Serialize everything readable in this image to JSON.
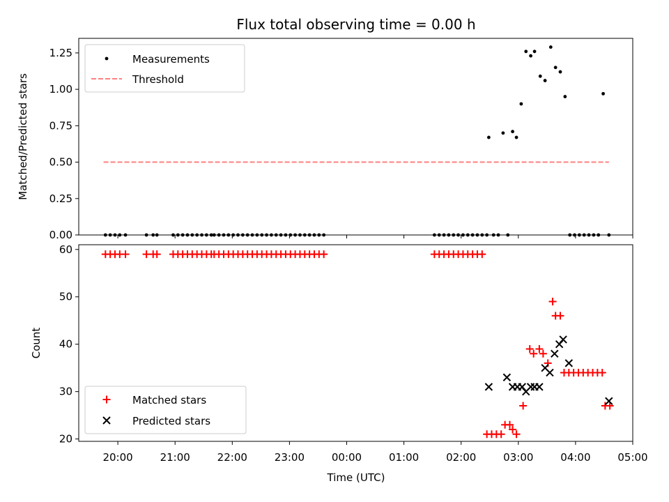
{
  "chart_data": [
    {
      "type": "scatter",
      "title": "Flux total observing time = 0.00 h",
      "ylabel": "Matched/Predicted stars",
      "ylim": [
        0,
        1.35
      ],
      "yticks": [
        "0.00",
        "0.25",
        "0.50",
        "0.75",
        "1.00",
        "1.25"
      ],
      "legend_position": "top-left",
      "colors": {
        "measurements": "#000000",
        "threshold": "#ff7f7f"
      },
      "series": [
        {
          "name": "Measurements",
          "x": [
            "19:47",
            "19:52",
            "19:57",
            "20:02",
            "20:08",
            "20:30",
            "20:37",
            "20:41",
            "20:58",
            "21:03",
            "21:08",
            "21:13",
            "21:18",
            "21:23",
            "21:28",
            "21:33",
            "21:38",
            "21:41",
            "21:46",
            "21:51",
            "21:56",
            "22:01",
            "22:06",
            "22:11",
            "22:16",
            "22:21",
            "22:26",
            "22:31",
            "22:36",
            "22:41",
            "22:46",
            "22:51",
            "22:56",
            "23:01",
            "23:06",
            "23:11",
            "23:16",
            "23:21",
            "23:26",
            "23:31",
            "23:36",
            "01:32",
            "01:37",
            "01:42",
            "01:47",
            "01:52",
            "01:57",
            "02:02",
            "02:07",
            "02:12",
            "02:17",
            "02:22",
            "02:27",
            "02:29",
            "02:34",
            "02:39",
            "02:44",
            "02:49",
            "02:54",
            "02:58",
            "03:03",
            "03:08",
            "03:13",
            "03:17",
            "03:23",
            "03:28",
            "03:34",
            "03:39",
            "03:44",
            "03:49",
            "03:54",
            "03:59",
            "04:04",
            "04:09",
            "04:14",
            "04:19",
            "04:24",
            "04:29",
            "04:35"
          ],
          "y": [
            0,
            0,
            0,
            0,
            0,
            0,
            0,
            0,
            0,
            0,
            0,
            0,
            0,
            0,
            0,
            0,
            0,
            0,
            0,
            0,
            0,
            0,
            0,
            0,
            0,
            0,
            0,
            0,
            0,
            0,
            0,
            0,
            0,
            0,
            0,
            0,
            0,
            0,
            0,
            0,
            0,
            0,
            0,
            0,
            0,
            0,
            0,
            0,
            0,
            0,
            0,
            0,
            0,
            0.67,
            0,
            0,
            0.7,
            0,
            0.71,
            0.67,
            0.9,
            1.26,
            1.23,
            1.26,
            1.09,
            1.06,
            1.29,
            1.15,
            1.12,
            0.95,
            0,
            0,
            0,
            0,
            0,
            0,
            0,
            0.97,
            0
          ]
        },
        {
          "name": "Threshold",
          "style": "dashed",
          "x": [
            "19:45",
            "04:35"
          ],
          "y": [
            0.5,
            0.5
          ]
        }
      ]
    },
    {
      "type": "scatter",
      "xlabel": "Time (UTC)",
      "ylabel": "Count",
      "ylim": [
        19.5,
        61
      ],
      "yticks": [
        "20",
        "30",
        "40",
        "50",
        "60"
      ],
      "xticks": [
        "20:00",
        "21:00",
        "22:00",
        "23:00",
        "00:00",
        "01:00",
        "02:00",
        "03:00",
        "04:00",
        "05:00"
      ],
      "legend_position": "bottom-left",
      "colors": {
        "matched": "#ff0000",
        "predicted": "#000000"
      },
      "series": [
        {
          "name": "Matched stars",
          "x": [
            "19:47",
            "19:52",
            "19:57",
            "20:02",
            "20:08",
            "20:30",
            "20:37",
            "20:41",
            "20:58",
            "21:03",
            "21:08",
            "21:13",
            "21:18",
            "21:23",
            "21:28",
            "21:33",
            "21:38",
            "21:41",
            "21:46",
            "21:51",
            "21:56",
            "22:01",
            "22:06",
            "22:11",
            "22:16",
            "22:21",
            "22:26",
            "22:31",
            "22:36",
            "22:41",
            "22:46",
            "22:51",
            "22:56",
            "23:01",
            "23:06",
            "23:11",
            "23:16",
            "23:21",
            "23:26",
            "23:31",
            "23:36",
            "01:32",
            "01:37",
            "01:42",
            "01:47",
            "01:52",
            "01:57",
            "02:02",
            "02:07",
            "02:12",
            "02:17",
            "02:22",
            "02:27",
            "02:32",
            "02:37",
            "02:42",
            "02:46",
            "02:51",
            "02:54",
            "02:58",
            "03:05",
            "03:12",
            "03:16",
            "03:22",
            "03:26",
            "03:31",
            "03:36",
            "03:39",
            "03:44",
            "03:48",
            "03:53",
            "03:58",
            "04:03",
            "04:08",
            "04:13",
            "04:18",
            "04:23",
            "04:28",
            "04:31",
            "04:36"
          ],
          "y": [
            59,
            59,
            59,
            59,
            59,
            59,
            59,
            59,
            59,
            59,
            59,
            59,
            59,
            59,
            59,
            59,
            59,
            59,
            59,
            59,
            59,
            59,
            59,
            59,
            59,
            59,
            59,
            59,
            59,
            59,
            59,
            59,
            59,
            59,
            59,
            59,
            59,
            59,
            59,
            59,
            59,
            59,
            59,
            59,
            59,
            59,
            59,
            59,
            59,
            59,
            59,
            59,
            21,
            21,
            21,
            21,
            23,
            23,
            22,
            21,
            27,
            39,
            38,
            39,
            38,
            36,
            49,
            46,
            46,
            34,
            34,
            34,
            34,
            34,
            34,
            34,
            34,
            34,
            27,
            27
          ]
        },
        {
          "name": "Predicted stars",
          "x": [
            "02:29",
            "02:48",
            "02:54",
            "02:59",
            "03:04",
            "03:08",
            "03:13",
            "03:17",
            "03:22",
            "03:28",
            "03:33",
            "03:38",
            "03:43",
            "03:47",
            "03:53",
            "04:35"
          ],
          "y": [
            31,
            33,
            31,
            31,
            31,
            30,
            31,
            31,
            31,
            35,
            34,
            38,
            40,
            41,
            36,
            28
          ]
        }
      ]
    }
  ]
}
